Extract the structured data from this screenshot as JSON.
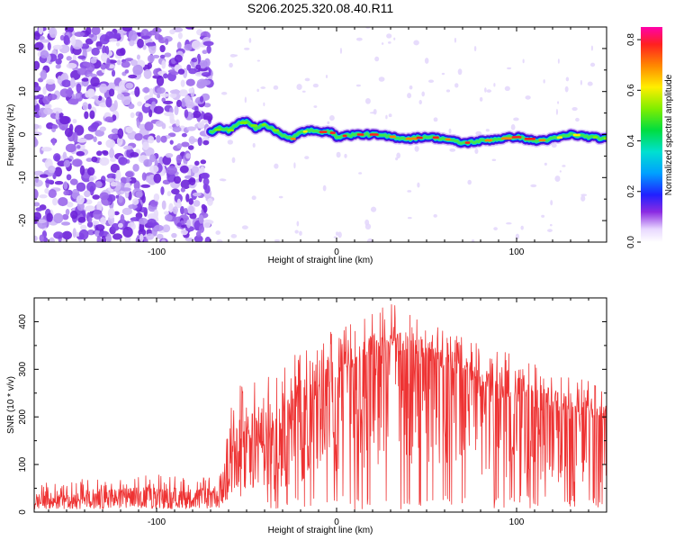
{
  "title": "S206.2025.320.08.40.R11",
  "chart_data": [
    {
      "type": "heatmap",
      "xlabel": "Height of straight line (km)",
      "ylabel": "Frequency (Hz)",
      "xlim": [
        -168,
        150
      ],
      "ylim": [
        -25,
        25
      ],
      "x_ticks": [
        -100,
        0,
        100
      ],
      "x_tick_labels": [
        "-100",
        "0",
        "100"
      ],
      "y_ticks": [
        -20,
        -10,
        0,
        10,
        20
      ],
      "y_tick_labels": [
        "-20",
        "-10",
        "0",
        "10",
        "20"
      ],
      "colorbar": {
        "label": "Normalized spectral amplitude",
        "range": [
          0,
          0.85
        ],
        "ticks": [
          0.0,
          0.2,
          0.4,
          0.6,
          0.8
        ],
        "tick_labels": [
          "0.0",
          "0.2",
          "0.4",
          "0.6",
          "0.8"
        ]
      },
      "noise_region_x": [
        -168,
        -70
      ],
      "signal_track": {
        "x": [
          -70,
          -65,
          -60,
          -55,
          -50,
          -45,
          -40,
          -35,
          -30,
          -25,
          -20,
          -15,
          -10,
          -5,
          0,
          10,
          20,
          30,
          40,
          50,
          60,
          70,
          80,
          90,
          100,
          110,
          120,
          130,
          140,
          150
        ],
        "freq": [
          0.5,
          1.5,
          1.0,
          2.5,
          3.0,
          1.5,
          2.5,
          1.0,
          0,
          -1.0,
          0.5,
          1.0,
          0.5,
          1.0,
          -0.5,
          0,
          0,
          -0.5,
          -1.0,
          -0.5,
          -1.0,
          -2.0,
          -1.5,
          -1.0,
          -0.5,
          -1.5,
          -1.0,
          0,
          -0.5,
          -1.0
        ],
        "amplitude": [
          0.35,
          0.5,
          0.55,
          0.6,
          0.65,
          0.6,
          0.7,
          0.65,
          0.7,
          0.75,
          0.7,
          0.8,
          0.85,
          0.8,
          0.85,
          0.85,
          0.85,
          0.8,
          0.8,
          0.85,
          0.8,
          0.85,
          0.8,
          0.8,
          0.85,
          0.8,
          0.75,
          0.7,
          0.65,
          0.6
        ]
      }
    },
    {
      "type": "line",
      "xlabel": "Height of straight line (km)",
      "ylabel": "SNR (10 * v/v)",
      "xlim": [
        -168,
        150
      ],
      "ylim": [
        0,
        450
      ],
      "x_ticks": [
        -100,
        0,
        100
      ],
      "x_tick_labels": [
        "-100",
        "0",
        "100"
      ],
      "y_ticks": [
        0,
        100,
        200,
        300,
        400
      ],
      "y_tick_labels": [
        "0",
        "100",
        "200",
        "300",
        "400"
      ],
      "series": [
        {
          "name": "SNR",
          "color": "#ee3333",
          "envelope_x": [
            -168,
            -140,
            -120,
            -100,
            -80,
            -65,
            -58,
            -52,
            -45,
            -40,
            -35,
            -30,
            -25,
            -20,
            -15,
            -10,
            -5,
            0,
            10,
            20,
            30,
            40,
            50,
            60,
            70,
            80,
            90,
            100,
            110,
            120,
            130,
            140,
            150
          ],
          "envelope_base": [
            20,
            22,
            25,
            25,
            22,
            30,
            90,
            110,
            130,
            140,
            150,
            170,
            190,
            200,
            220,
            240,
            260,
            280,
            300,
            320,
            330,
            330,
            320,
            300,
            280,
            260,
            240,
            230,
            220,
            210,
            200,
            195,
            190
          ],
          "envelope_peak": [
            60,
            70,
            70,
            80,
            70,
            80,
            270,
            270,
            300,
            280,
            320,
            320,
            330,
            340,
            350,
            410,
            380,
            380,
            400,
            420,
            440,
            420,
            400,
            380,
            370,
            350,
            340,
            330,
            320,
            300,
            290,
            280,
            270
          ]
        }
      ]
    }
  ],
  "colors": {
    "frame": "#000000",
    "noise": "#7c3cf0",
    "snr_line": "#ee3333"
  }
}
